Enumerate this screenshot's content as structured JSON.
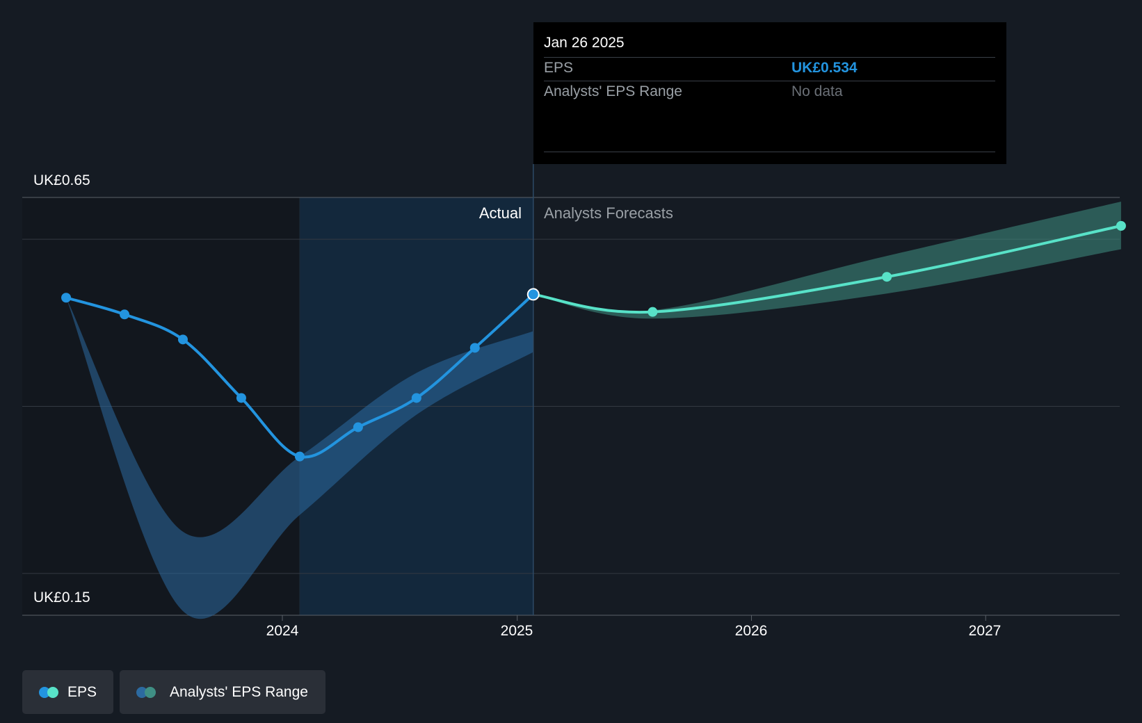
{
  "chart_data": {
    "type": "line",
    "y_axis_labels": [
      "UK£0.65",
      "UK£0.15"
    ],
    "ylim": [
      0.15,
      0.65
    ],
    "x_ticks": [
      "2024",
      "2025",
      "2026",
      "2027"
    ],
    "region_labels": {
      "actual": "Actual",
      "forecast": "Analysts Forecasts"
    },
    "series": [
      {
        "name": "EPS",
        "kind": "actual",
        "color": "#2394df",
        "points": [
          {
            "x": "2023-01-29",
            "y": 0.53
          },
          {
            "x": "2023-04-30",
            "y": 0.51
          },
          {
            "x": "2023-07-30",
            "y": 0.48
          },
          {
            "x": "2023-10-29",
            "y": 0.41
          },
          {
            "x": "2024-01-28",
            "y": 0.34
          },
          {
            "x": "2024-04-28",
            "y": 0.375
          },
          {
            "x": "2024-07-28",
            "y": 0.41
          },
          {
            "x": "2024-10-27",
            "y": 0.47
          },
          {
            "x": "2025-01-26",
            "y": 0.534
          }
        ]
      },
      {
        "name": "EPS",
        "kind": "forecast",
        "color": "#58e2c8",
        "points": [
          {
            "x": "2025-01-26",
            "y": 0.534
          },
          {
            "x": "2025-07-31",
            "y": 0.513
          },
          {
            "x": "2026-07-31",
            "y": 0.555
          },
          {
            "x": "2027-07-31",
            "y": 0.616
          }
        ]
      }
    ],
    "ranges": [
      {
        "name": "Analysts' EPS Range",
        "kind": "actual",
        "color": "#2c6aa0",
        "upper": [
          {
            "x": "2023-01-29",
            "y": 0.53
          },
          {
            "x": "2023-07-30",
            "y": 0.25
          },
          {
            "x": "2024-01-28",
            "y": 0.34
          },
          {
            "x": "2024-07-28",
            "y": 0.44
          },
          {
            "x": "2025-01-26",
            "y": 0.49
          }
        ],
        "lower": [
          {
            "x": "2023-01-29",
            "y": 0.53
          },
          {
            "x": "2023-07-30",
            "y": 0.155
          },
          {
            "x": "2024-01-28",
            "y": 0.27
          },
          {
            "x": "2024-07-28",
            "y": 0.39
          },
          {
            "x": "2025-01-26",
            "y": 0.465
          }
        ]
      },
      {
        "name": "Analysts' EPS Range",
        "kind": "forecast",
        "color": "#3f8f84",
        "upper": [
          {
            "x": "2025-01-26",
            "y": 0.534
          },
          {
            "x": "2025-07-31",
            "y": 0.515
          },
          {
            "x": "2026-07-31",
            "y": 0.58
          },
          {
            "x": "2027-07-31",
            "y": 0.645
          }
        ],
        "lower": [
          {
            "x": "2025-01-26",
            "y": 0.534
          },
          {
            "x": "2025-07-31",
            "y": 0.505
          },
          {
            "x": "2026-07-31",
            "y": 0.535
          },
          {
            "x": "2027-07-31",
            "y": 0.588
          }
        ]
      }
    ],
    "highlight": {
      "x": "2025-01-26",
      "y": 0.534
    },
    "gridlines": true
  },
  "tooltip": {
    "date": "Jan 26 2025",
    "rows": [
      {
        "label": "EPS",
        "value": "UK£0.534"
      },
      {
        "label": "Analysts' EPS Range",
        "value": "No data"
      }
    ]
  },
  "legend": [
    {
      "label": "EPS",
      "colors": [
        "#2394df",
        "#58e2c8"
      ]
    },
    {
      "label": "Analysts' EPS Range",
      "colors": [
        "#2c6aa0",
        "#3f8f84"
      ]
    }
  ]
}
